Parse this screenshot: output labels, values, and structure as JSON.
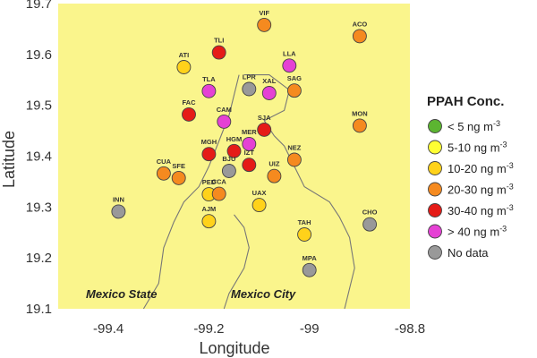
{
  "chart_data": {
    "type": "scatter",
    "xlabel": "Longitude",
    "ylabel": "Latitude",
    "xlim": [
      -99.5,
      -98.8
    ],
    "ylim": [
      19.1,
      19.7
    ],
    "xticks": [
      "-99.4",
      "-99.2",
      "-99",
      "-98.8"
    ],
    "yticks": [
      "19.1",
      "19.2",
      "19.3",
      "19.4",
      "19.5",
      "19.6",
      "19.7"
    ],
    "xtick_values": [
      -99.4,
      -99.2,
      -99.0,
      -98.8
    ],
    "ytick_values": [
      19.1,
      19.2,
      19.3,
      19.4,
      19.5,
      19.6,
      19.7
    ],
    "grid": false,
    "background_color": "#faf58c",
    "region_labels": [
      "Mexico State",
      "Mexico City"
    ],
    "legend": {
      "title": "PPAH Conc.",
      "placement": "right",
      "entries": [
        {
          "text": "< 5 ng m",
          "sup": "-3",
          "color": "#5cb531"
        },
        {
          "text": "5-10 ng m",
          "sup": "-3",
          "color": "#ffff33"
        },
        {
          "text": "10-20 ng m",
          "sup": "-3",
          "color": "#ffd21a"
        },
        {
          "text": "20-30 ng m",
          "sup": "-3",
          "color": "#f58a1f"
        },
        {
          "text": "30-40 ng m",
          "sup": "-3",
          "color": "#e51b17"
        },
        {
          "text": "> 40 ng m",
          "sup": "-3",
          "color": "#e541d4"
        },
        {
          "text": "No data",
          "sup": "",
          "color": "#999999"
        }
      ]
    },
    "points": [
      {
        "label": "VIF",
        "x": -99.09,
        "y": 19.658,
        "category": "20-30 ng m-3"
      },
      {
        "label": "ACO",
        "x": -98.9,
        "y": 19.636,
        "category": "20-30 ng m-3"
      },
      {
        "label": "TLI",
        "x": -99.18,
        "y": 19.604,
        "category": "30-40 ng m-3"
      },
      {
        "label": "ATI",
        "x": -99.25,
        "y": 19.575,
        "category": "10-20 ng m-3"
      },
      {
        "label": "LLA",
        "x": -99.04,
        "y": 19.578,
        "category": "> 40 ng m-3"
      },
      {
        "label": "TLA",
        "x": -99.2,
        "y": 19.528,
        "category": "> 40 ng m-3"
      },
      {
        "label": "LPR",
        "x": -99.12,
        "y": 19.532,
        "category": "No data"
      },
      {
        "label": "XAL",
        "x": -99.08,
        "y": 19.524,
        "category": "> 40 ng m-3"
      },
      {
        "label": "SAG",
        "x": -99.03,
        "y": 19.529,
        "category": "20-30 ng m-3"
      },
      {
        "label": "FAC",
        "x": -99.24,
        "y": 19.482,
        "category": "30-40 ng m-3"
      },
      {
        "label": "CAM",
        "x": -99.17,
        "y": 19.468,
        "category": "> 40 ng m-3"
      },
      {
        "label": "MON",
        "x": -98.9,
        "y": 19.46,
        "category": "20-30 ng m-3"
      },
      {
        "label": "SJA",
        "x": -99.09,
        "y": 19.452,
        "category": "30-40 ng m-3"
      },
      {
        "label": "MER",
        "x": -99.12,
        "y": 19.424,
        "category": "> 40 ng m-3"
      },
      {
        "label": "MGH",
        "x": -99.2,
        "y": 19.404,
        "category": "30-40 ng m-3"
      },
      {
        "label": "HGM",
        "x": -99.15,
        "y": 19.41,
        "category": "30-40 ng m-3"
      },
      {
        "label": "NEZ",
        "x": -99.03,
        "y": 19.393,
        "category": "20-30 ng m-3"
      },
      {
        "label": "IZT",
        "x": -99.12,
        "y": 19.383,
        "category": "30-40 ng m-3"
      },
      {
        "label": "BJU",
        "x": -99.16,
        "y": 19.371,
        "category": "No data"
      },
      {
        "label": "CUA",
        "x": -99.29,
        "y": 19.366,
        "category": "20-30 ng m-3"
      },
      {
        "label": "SFE",
        "x": -99.26,
        "y": 19.357,
        "category": "20-30 ng m-3"
      },
      {
        "label": "UIZ",
        "x": -99.07,
        "y": 19.361,
        "category": "20-30 ng m-3"
      },
      {
        "label": "PED",
        "x": -99.2,
        "y": 19.325,
        "category": "10-20 ng m-3"
      },
      {
        "label": "CCA",
        "x": -99.18,
        "y": 19.326,
        "category": "20-30 ng m-3"
      },
      {
        "label": "UAX",
        "x": -99.1,
        "y": 19.304,
        "category": "10-20 ng m-3"
      },
      {
        "label": "INN",
        "x": -99.38,
        "y": 19.291,
        "category": "No data"
      },
      {
        "label": "CHO",
        "x": -98.88,
        "y": 19.266,
        "category": "No data"
      },
      {
        "label": "AJM",
        "x": -99.2,
        "y": 19.272,
        "category": "10-20 ng m-3"
      },
      {
        "label": "TAH",
        "x": -99.01,
        "y": 19.246,
        "category": "10-20 ng m-3"
      },
      {
        "label": "MPA",
        "x": -99.0,
        "y": 19.176,
        "category": "No data"
      }
    ],
    "boundary": [
      [
        -99.13,
        19.56
      ],
      [
        -99.08,
        19.56
      ],
      [
        -99.04,
        19.53
      ],
      [
        -99.05,
        19.49
      ],
      [
        -99.09,
        19.47
      ],
      [
        -99.07,
        19.44
      ],
      [
        -99.05,
        19.42
      ],
      [
        -99.03,
        19.38
      ],
      [
        -99.01,
        19.34
      ],
      [
        -98.96,
        19.31
      ],
      [
        -98.94,
        19.28
      ],
      [
        -98.92,
        19.24
      ],
      [
        -98.91,
        19.18
      ],
      [
        -98.93,
        19.1
      ]
    ],
    "boundary2": [
      [
        -99.14,
        19.56
      ],
      [
        -99.15,
        19.52
      ],
      [
        -99.16,
        19.48
      ],
      [
        -99.18,
        19.43
      ],
      [
        -99.2,
        19.38
      ],
      [
        -99.22,
        19.34
      ],
      [
        -99.25,
        19.31
      ],
      [
        -99.27,
        19.27
      ],
      [
        -99.29,
        19.22
      ],
      [
        -99.3,
        19.15
      ],
      [
        -99.33,
        19.1
      ]
    ],
    "boundary3": [
      [
        -99.15,
        19.285
      ],
      [
        -99.13,
        19.26
      ],
      [
        -99.12,
        19.22
      ],
      [
        -99.13,
        19.18
      ],
      [
        -99.16,
        19.13
      ],
      [
        -99.17,
        19.1
      ]
    ]
  }
}
